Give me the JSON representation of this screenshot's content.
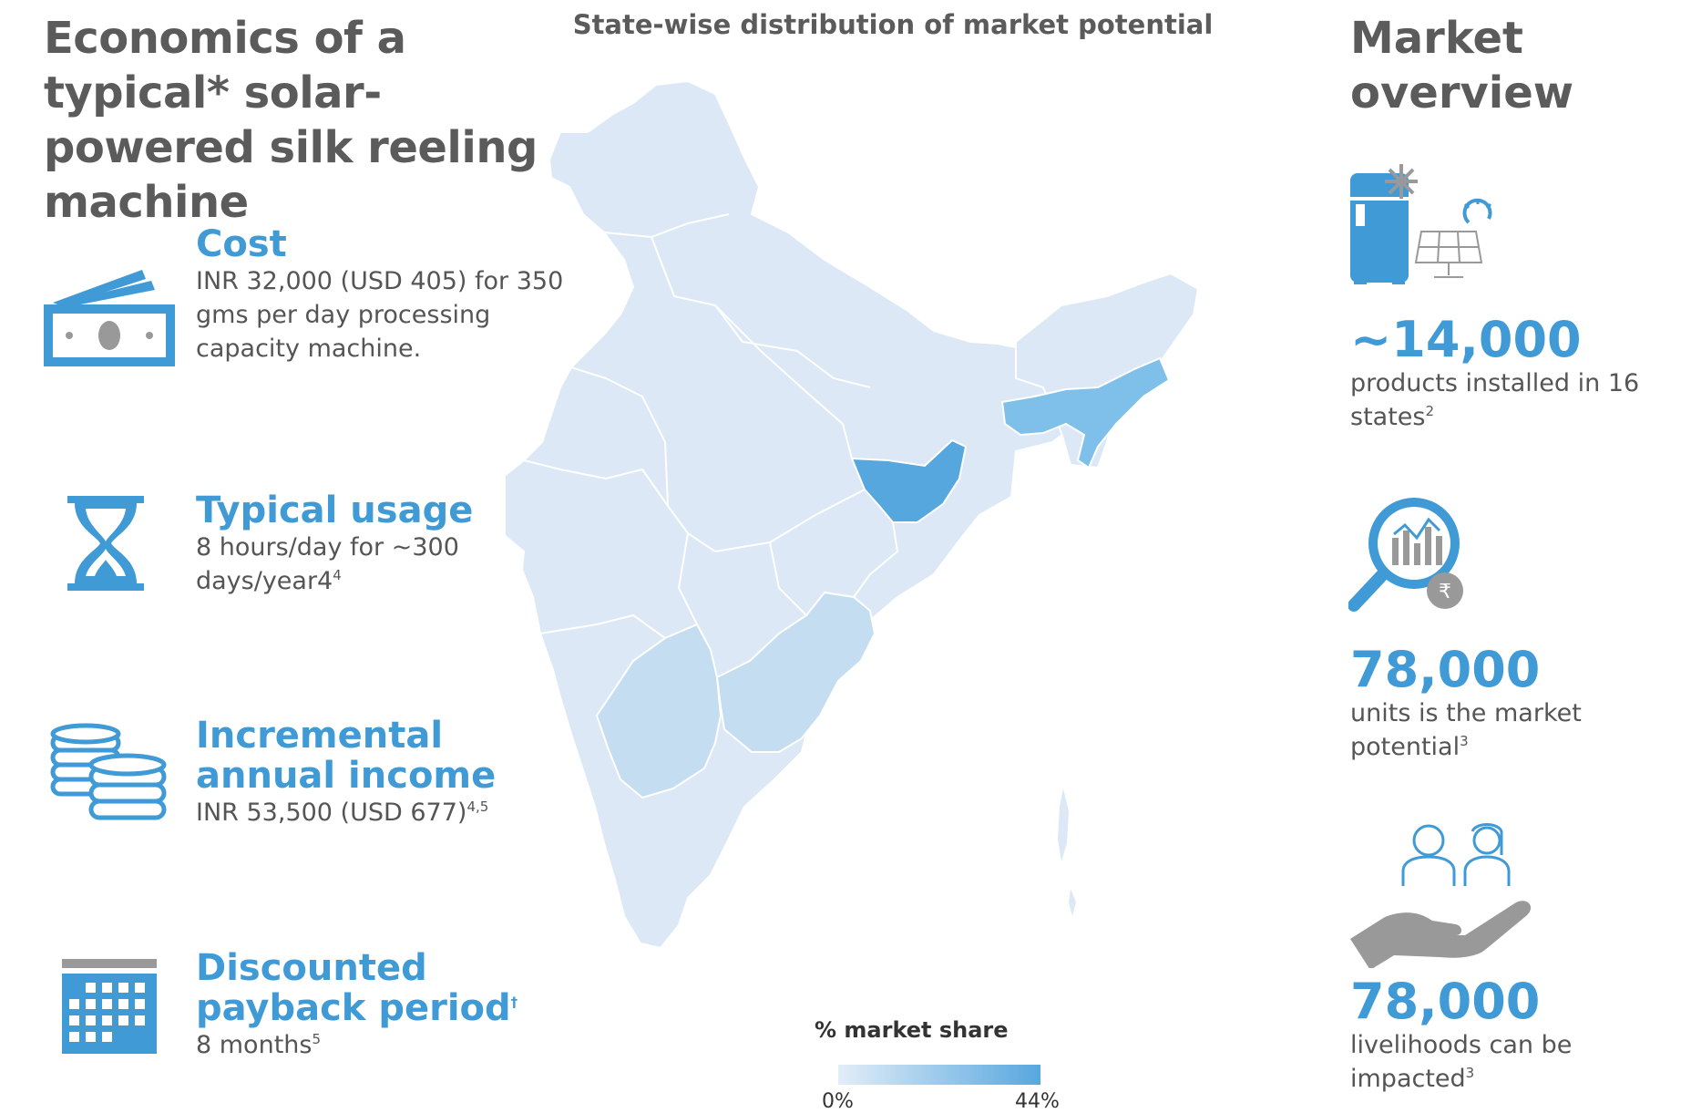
{
  "left": {
    "title": "Economics of a typical* solar-powered silk reeling machine",
    "items": [
      {
        "heading": "Cost",
        "body": "INR 32,000 (USD 405) for 350 gms per day processing capacity machine.",
        "sup": "",
        "icon": "money-icon"
      },
      {
        "heading": "Typical usage",
        "body": "8 hours/day for ~300 days/year4",
        "sup": "4",
        "icon": "hourglass-icon"
      },
      {
        "heading": "Incremental annual income",
        "body": "INR 53,500 (USD 677)",
        "sup": "4,5",
        "icon": "coins-icon"
      },
      {
        "heading": "Discounted payback period",
        "heading_sup": "†",
        "body": "8 months",
        "sup": "5",
        "icon": "calendar-icon"
      }
    ]
  },
  "map": {
    "title": "State-wise distribution of market potential",
    "legend_title": "% market share",
    "legend_min": "0%",
    "legend_max": "44%",
    "colors": {
      "base": "#dce8f5",
      "low": "#c5ddf1",
      "mid": "#7ec0ea",
      "high": "#56a7de",
      "border": "#ffffff"
    }
  },
  "right": {
    "title": "Market overview",
    "stats": [
      {
        "value": "~14,000",
        "text": "products installed in 16 states",
        "sup": "2",
        "icon": "solar-refrigerator-icon"
      },
      {
        "value": "78,000",
        "text": "units is the market potential",
        "sup": "3",
        "icon": "market-analysis-icon"
      },
      {
        "value": "78,000",
        "text": "livelihoods can be impacted",
        "sup": "3",
        "icon": "people-hand-icon"
      }
    ]
  },
  "colors": {
    "accent": "#3f9ad6",
    "heading": "#5b5b5b",
    "icon_gray": "#9e9e9e"
  }
}
